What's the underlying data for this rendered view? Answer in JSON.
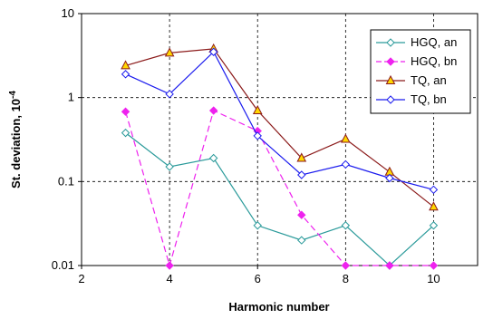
{
  "chart_data": {
    "type": "line",
    "xlabel": "Harmonic number",
    "ylabel": "St. deviation, 10",
    "ylabel_exponent": "-4",
    "xlim": [
      2,
      11
    ],
    "ylim": [
      0.01,
      10
    ],
    "yscale": "log",
    "x_ticks": [
      2,
      4,
      6,
      8,
      10
    ],
    "x_tick_labels": [
      "2",
      "4",
      "6",
      "8",
      "10"
    ],
    "y_ticks": [
      0.01,
      0.1,
      1,
      10
    ],
    "y_tick_labels": [
      "0.01",
      "0.1",
      "1",
      "10"
    ],
    "grid": "major-dashed",
    "legend_position": "top-right",
    "series": [
      {
        "name": "HGQ, an",
        "color": "#2a9a9a",
        "marker": "diamond-open",
        "line": "solid",
        "x": [
          3,
          4,
          5,
          6,
          7,
          8,
          9,
          10
        ],
        "y": [
          0.38,
          0.15,
          0.19,
          0.03,
          0.02,
          0.03,
          0.01,
          0.03
        ]
      },
      {
        "name": "HGQ, bn",
        "color": "#ee22ee",
        "marker": "diamond-filled",
        "line": "dashed",
        "x": [
          3,
          4,
          5,
          6,
          7,
          8,
          9,
          10
        ],
        "y": [
          0.68,
          0.01,
          0.7,
          0.4,
          0.04,
          0.01,
          0.01,
          0.01
        ]
      },
      {
        "name": "TQ, an",
        "color": "#8b1a1a",
        "marker": "triangle-filled",
        "marker_fill": "#ffd700",
        "line": "solid",
        "x": [
          3,
          4,
          5,
          6,
          7,
          8,
          9,
          10
        ],
        "y": [
          2.4,
          3.4,
          3.8,
          0.7,
          0.19,
          0.32,
          0.13,
          0.05
        ]
      },
      {
        "name": "TQ, bn",
        "color": "#1a1aee",
        "marker": "diamond-open",
        "line": "solid",
        "x": [
          3,
          4,
          5,
          6,
          7,
          8,
          9,
          10
        ],
        "y": [
          1.9,
          1.1,
          3.5,
          0.35,
          0.12,
          0.16,
          0.11,
          0.08
        ]
      }
    ]
  }
}
